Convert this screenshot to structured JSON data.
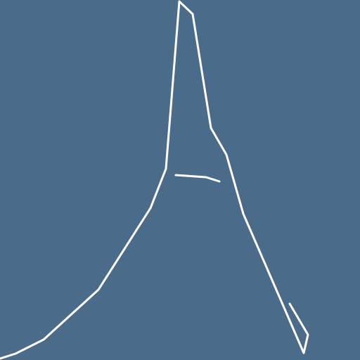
{
  "colors": {
    "background": "#4a6b8a",
    "line": "#ffffff"
  }
}
